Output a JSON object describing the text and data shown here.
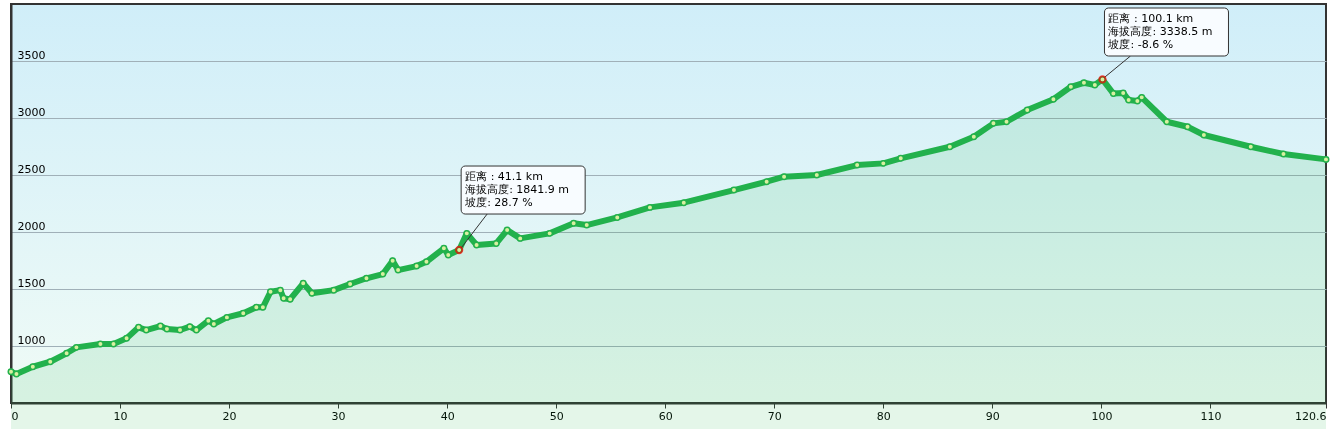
{
  "chart_data": {
    "type": "area",
    "marker": "circle",
    "grid": "y",
    "xlim": [
      0,
      120.6
    ],
    "xticks": [
      0,
      10,
      20,
      30,
      40,
      50,
      60,
      70,
      80,
      90,
      100,
      110,
      120.6
    ],
    "ylim": [
      500,
      4000
    ],
    "yticks": [
      1000,
      1500,
      2000,
      2500,
      3000,
      3500
    ],
    "series": [
      {
        "color": "#22b14c",
        "x": [
          0,
          0.5,
          2.0,
          3.6,
          5.1,
          6.0,
          8.2,
          9.4,
          10.6,
          11.7,
          12.4,
          13.7,
          14.3,
          15.5,
          16.4,
          17.0,
          18.1,
          18.6,
          19.8,
          21.3,
          22.5,
          23.1,
          23.8,
          24.7,
          25.0,
          25.6,
          26.8,
          27.6,
          29.6,
          31.1,
          32.6,
          34.1,
          35.0,
          35.5,
          37.2,
          38.1,
          39.7,
          40.1,
          41.1,
          41.8,
          42.7,
          44.5,
          45.5,
          46.7,
          49.4,
          51.6,
          52.8,
          55.6,
          58.6,
          61.7,
          66.3,
          69.3,
          70.9,
          73.9,
          77.6,
          80.0,
          81.6,
          86.1,
          88.3,
          90.1,
          91.3,
          93.2,
          95.6,
          97.2,
          98.4,
          99.4,
          100.1,
          101.1,
          102.0,
          102.5,
          103.3,
          103.7,
          106.0,
          107.9,
          109.4,
          113.7,
          116.7,
          120.6
        ],
        "values": [
          775,
          754,
          818,
          862,
          936,
          988,
          1018,
          1018,
          1067,
          1164,
          1140,
          1175,
          1150,
          1140,
          1170,
          1140,
          1222,
          1193,
          1251,
          1287,
          1339,
          1339,
          1476,
          1490,
          1418,
          1410,
          1550,
          1462,
          1490,
          1544,
          1594,
          1631,
          1748,
          1666,
          1701,
          1739,
          1857,
          1799,
          1841.9,
          1988,
          1886,
          1900,
          2017,
          1944,
          1988,
          2076,
          2061,
          2128,
          2216,
          2257,
          2368,
          2441,
          2485,
          2500,
          2587,
          2602,
          2646,
          2748,
          2836,
          2953,
          2967,
          3070,
          3164,
          3274,
          3309,
          3290,
          3338.5,
          3214,
          3220,
          3158,
          3149,
          3181,
          2967,
          2923,
          2851,
          2748,
          2684,
          2637
        ]
      }
    ],
    "annotations": [
      {
        "text": "距离  : 41.1 km\n海拔高度: 1841.9 m\n坡度: 28.7 %",
        "x": 41.1,
        "y": 1841.9
      },
      {
        "text": "距离  : 100.1 km\n海拔高度: 3338.5 m\n坡度: -8.6 %",
        "x": 100.1,
        "y": 3338.5
      }
    ]
  }
}
